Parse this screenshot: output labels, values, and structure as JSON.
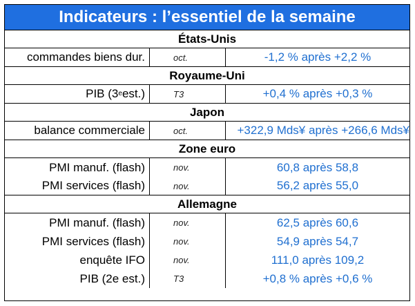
{
  "title": "Indicateurs : l’essentiel de la semaine",
  "sections": {
    "us": {
      "name": "États-Unis",
      "rows": [
        {
          "label": "commandes biens dur.",
          "period": "oct.",
          "value": "-1,2 % après +2,2 %"
        }
      ]
    },
    "uk": {
      "name": "Royaume-Uni",
      "rows": [
        {
          "label_pre": "PIB (3",
          "label_sup": "e",
          "label_post": " est.)",
          "period": "T3",
          "value": "+0,4 % après +0,3 %"
        }
      ]
    },
    "jp": {
      "name": "Japon",
      "rows": [
        {
          "label": "balance commerciale",
          "period": "oct.",
          "value": "+322,9 Mds¥ après +266,6 Mds¥"
        }
      ]
    },
    "ez": {
      "name": "Zone euro",
      "rows": [
        {
          "label": "PMI manuf. (flash)",
          "period": "nov.",
          "value": "60,8 après 58,8"
        },
        {
          "label": "PMI services (flash)",
          "period": "nov.",
          "value": "56,2 après 55,0"
        }
      ]
    },
    "de": {
      "name": "Allemagne",
      "rows": [
        {
          "label": "PMI manuf. (flash)",
          "period": "nov.",
          "value": "62,5 après 60,6"
        },
        {
          "label": "PMI services (flash)",
          "period": "nov.",
          "value": "54,9 après 54,7"
        },
        {
          "label": "enquête IFO",
          "period": "nov.",
          "value": "111,0 après 109,2"
        },
        {
          "label": "PIB (2e est.)",
          "period": "T3",
          "value": "+0,8 % après +0,6 %"
        }
      ]
    }
  },
  "colors": {
    "header_bg": "#1f6fe0",
    "value_text": "#1f6fd0"
  }
}
